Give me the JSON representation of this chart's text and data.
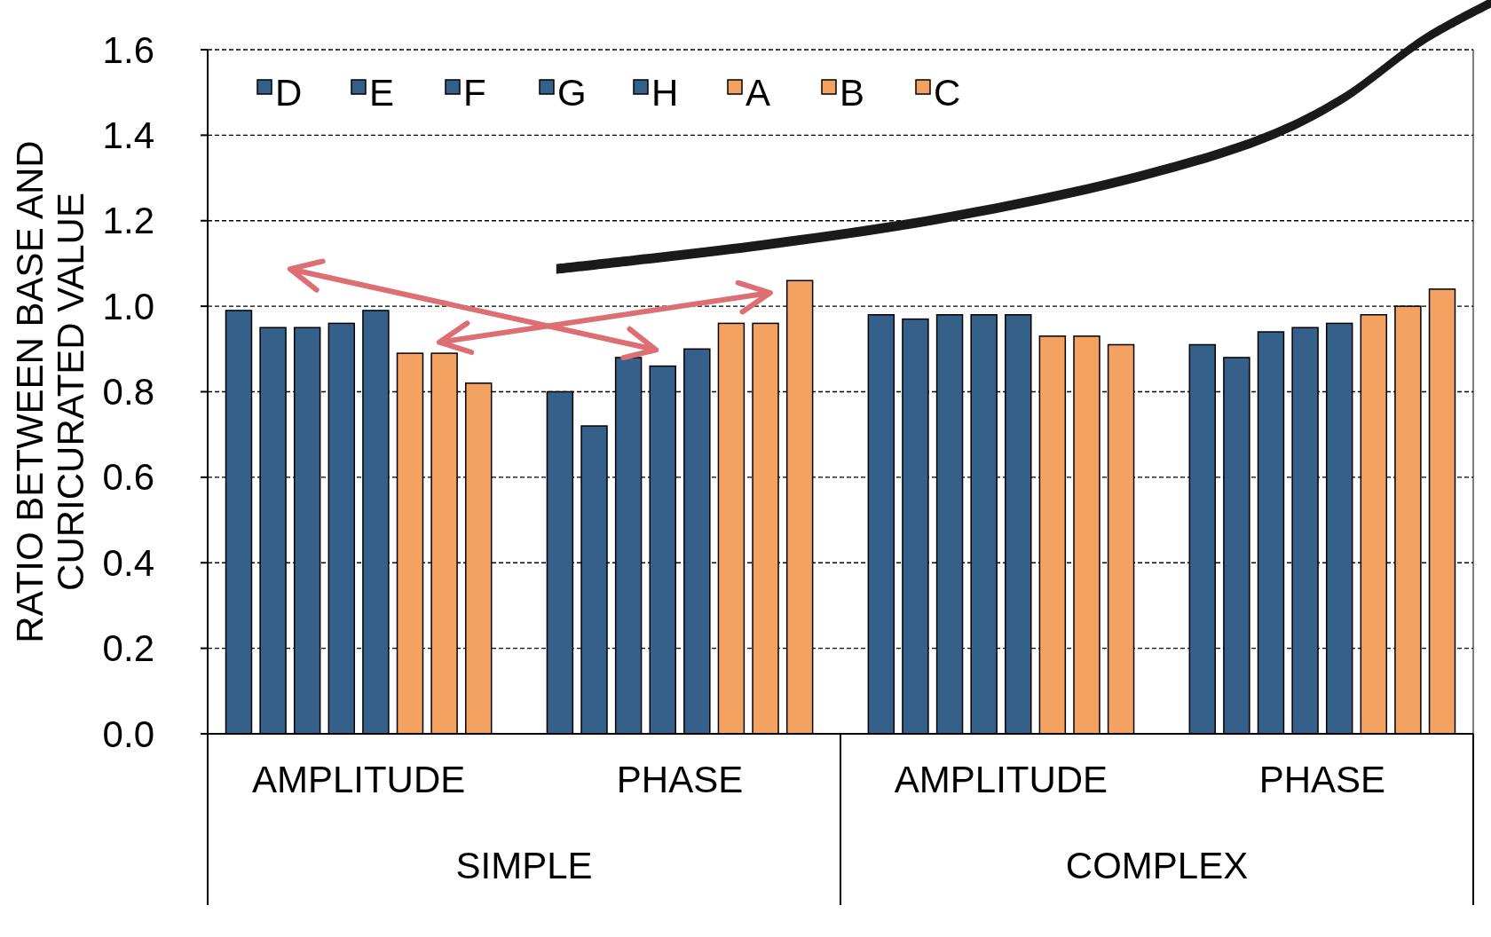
{
  "chart_data": {
    "type": "bar",
    "ylabel": "RATIO BETWEEN BASE AND CURICURATED VALUE",
    "categories": [
      "AMPLITUDE",
      "PHASE",
      "AMPLITUDE",
      "PHASE"
    ],
    "annotations": [
      "SIMPLE",
      "COMPLEX"
    ],
    "series": [
      {
        "name": "D",
        "color": "#35608a",
        "values": [
          0.99,
          0.8,
          0.98,
          0.91
        ]
      },
      {
        "name": "E",
        "color": "#35608a",
        "values": [
          0.95,
          0.72,
          0.97,
          0.88
        ]
      },
      {
        "name": "F",
        "color": "#35608a",
        "values": [
          0.95,
          0.88,
          0.98,
          0.94
        ]
      },
      {
        "name": "G",
        "color": "#35608a",
        "values": [
          0.96,
          0.86,
          0.98,
          0.95
        ]
      },
      {
        "name": "H",
        "color": "#35608a",
        "values": [
          0.99,
          0.9,
          0.98,
          0.96
        ]
      },
      {
        "name": "A",
        "color": "#f4a261",
        "values": [
          0.89,
          0.96,
          0.93,
          0.98
        ]
      },
      {
        "name": "B",
        "color": "#f4a261",
        "values": [
          0.89,
          0.96,
          0.93,
          1.0
        ]
      },
      {
        "name": "C",
        "color": "#f4a261",
        "values": [
          0.82,
          1.06,
          0.91,
          1.04
        ]
      }
    ],
    "ylim": [
      0,
      1.6
    ],
    "yticks": [
      {
        "value": 0,
        "label": "0.0"
      },
      {
        "value": 0.2,
        "label": "0.2"
      },
      {
        "value": 0.4,
        "label": "0.4"
      },
      {
        "value": 0.6,
        "label": "0.6"
      },
      {
        "value": 0.8,
        "label": "0.8"
      },
      {
        "value": 1,
        "label": "1.0"
      },
      {
        "value": 1.2,
        "label": "1.2"
      },
      {
        "value": 1.4,
        "label": "1.4"
      },
      {
        "value": 1.6,
        "label": "1.6"
      }
    ],
    "grid": "y",
    "legend": "top left"
  }
}
